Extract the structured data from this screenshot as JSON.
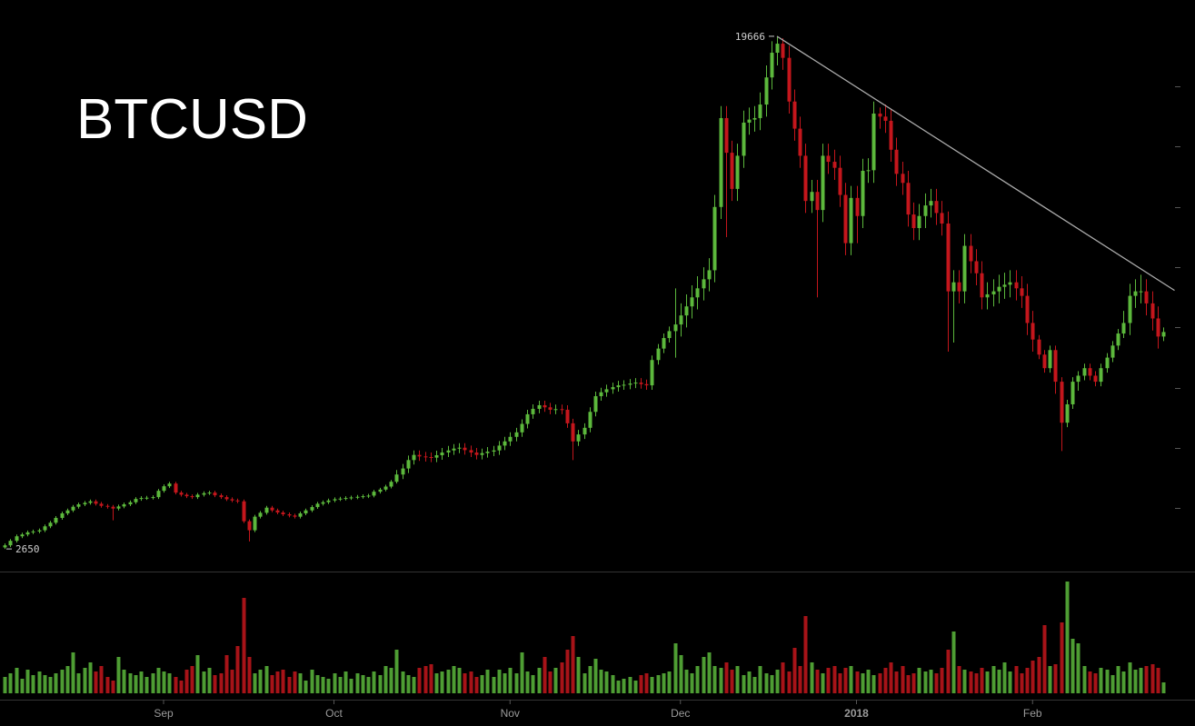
{
  "chart_data": {
    "type": "candlestick",
    "title": "BTCUSD",
    "xlim": [
      -0.8,
      209.6
    ],
    "ylim": [
      1900,
      20870
    ],
    "yticks": [
      4000,
      6000,
      8000,
      10000,
      12000,
      14000,
      16000,
      18000
    ],
    "xticks": [
      {
        "value": 28,
        "label": "Sep"
      },
      {
        "value": 58,
        "label": "Oct"
      },
      {
        "value": 89,
        "label": "Nov"
      },
      {
        "value": 119,
        "label": "Dec"
      },
      {
        "value": 150,
        "label": "2018"
      },
      {
        "value": 181,
        "label": "Feb"
      }
    ],
    "up_color": "#5cb83c",
    "down_color": "#c4161c",
    "open": [
      2700,
      2770,
      2920,
      3070,
      3130,
      3200,
      3230,
      3270,
      3400,
      3520,
      3680,
      3830,
      3930,
      4050,
      4130,
      4180,
      4230,
      4150,
      4080,
      4050,
      3990,
      4060,
      4130,
      4200,
      4310,
      4340,
      4350,
      4370,
      4580,
      4730,
      4820,
      4520,
      4450,
      4400,
      4370,
      4450,
      4500,
      4520,
      4430,
      4370,
      4300,
      4260,
      4230,
      3570,
      3270,
      3720,
      3850,
      4020,
      3930,
      3860,
      3800,
      3760,
      3720,
      3830,
      3930,
      4040,
      4150,
      4200,
      4260,
      4300,
      4320,
      4340,
      4360,
      4380,
      4400,
      4420,
      4550,
      4620,
      4720,
      4880,
      5120,
      5320,
      5600,
      5770,
      5720,
      5700,
      5680,
      5760,
      5850,
      5920,
      5980,
      6010,
      5930,
      5850,
      5770,
      5830,
      5880,
      5920,
      6080,
      6220,
      6370,
      6520,
      6800,
      7120,
      7300,
      7420,
      7350,
      7270,
      7290,
      7270,
      6820,
      6220,
      6450,
      6670,
      7200,
      7720,
      7850,
      7950,
      8020,
      8080,
      8100,
      8140,
      8170,
      8120,
      8080,
      8920,
      9300,
      9650,
      9880,
      10100,
      10400,
      10700,
      11000,
      11300,
      11600,
      11900,
      14000,
      16950,
      15800,
      14600,
      15700,
      16800,
      16900,
      16950,
      17400,
      18300,
      19120,
      19420,
      18950,
      17500,
      16600,
      15700,
      14200,
      14500,
      13900,
      15700,
      15500,
      15300,
      14400,
      12800,
      14300,
      13700,
      15200,
      15220,
      17100,
      17000,
      16860,
      15900,
      15100,
      14800,
      13750,
      13300,
      13700,
      14050,
      14200,
      13800,
      13450,
      11200,
      11500,
      11200,
      12710,
      12200,
      11800,
      11000,
      11100,
      11200,
      11350,
      11420,
      11500,
      11300,
      11050,
      10150,
      9600,
      9100,
      8650,
      9250,
      8200,
      6840,
      7450,
      8200,
      8400,
      8650,
      8400,
      8200,
      8650,
      9000,
      9400,
      9800,
      10150,
      11050,
      11200,
      11200,
      10800,
      10300,
      9700
    ],
    "high": [
      2830,
      2980,
      3130,
      3190,
      3260,
      3290,
      3330,
      3460,
      3580,
      3740,
      3890,
      3990,
      4110,
      4190,
      4240,
      4290,
      4290,
      4210,
      4140,
      4110,
      4120,
      4190,
      4260,
      4370,
      4400,
      4410,
      4430,
      4640,
      4790,
      4880,
      4880,
      4580,
      4510,
      4460,
      4510,
      4560,
      4580,
      4580,
      4490,
      4430,
      4360,
      4320,
      4290,
      3630,
      3780,
      3910,
      4080,
      4080,
      3990,
      3920,
      3860,
      3820,
      3890,
      3990,
      4100,
      4210,
      4260,
      4320,
      4360,
      4380,
      4400,
      4420,
      4440,
      4460,
      4480,
      4610,
      4680,
      4780,
      4940,
      5270,
      5470,
      5750,
      5920,
      5920,
      5870,
      5850,
      5910,
      6000,
      6070,
      6130,
      6160,
      6160,
      6080,
      6000,
      5980,
      6030,
      6070,
      6230,
      6370,
      6520,
      6670,
      6950,
      7270,
      7450,
      7570,
      7570,
      7500,
      7440,
      7440,
      7420,
      6970,
      6600,
      6820,
      7350,
      7870,
      8000,
      8100,
      8170,
      8230,
      8250,
      8290,
      8320,
      8320,
      8270,
      9070,
      9450,
      9800,
      10030,
      11300,
      10800,
      11100,
      11400,
      11700,
      12000,
      12300,
      14400,
      17350,
      17350,
      16200,
      16100,
      17200,
      17300,
      17350,
      17800,
      18700,
      19500,
      19666,
      19600,
      19350,
      17900,
      17000,
      16100,
      14900,
      14900,
      16100,
      16100,
      15900,
      15700,
      14800,
      14700,
      14700,
      15600,
      15620,
      17500,
      17300,
      17400,
      17260,
      16300,
      15500,
      15200,
      14150,
      14100,
      14450,
      14600,
      14600,
      14200,
      13850,
      11900,
      11900,
      13100,
      13100,
      12600,
      12200,
      11500,
      11600,
      11750,
      11820,
      11900,
      11900,
      11700,
      11450,
      10550,
      9750,
      9250,
      9400,
      9400,
      8350,
      7600,
      8350,
      8550,
      8800,
      8800,
      8550,
      8800,
      9150,
      9550,
      9950,
      10550,
      11450,
      11600,
      11750,
      11600,
      11200,
      10700,
      10000
    ],
    "low": [
      2650,
      2710,
      2860,
      3010,
      3070,
      3140,
      3170,
      3210,
      3340,
      3460,
      3620,
      3770,
      3870,
      3990,
      4070,
      4120,
      4090,
      4020,
      3990,
      3600,
      3930,
      4000,
      4070,
      4140,
      4250,
      4280,
      4290,
      4310,
      4520,
      4670,
      4460,
      4390,
      4340,
      4310,
      4310,
      4390,
      4440,
      4370,
      4310,
      4240,
      4200,
      4170,
      3510,
      2900,
      3210,
      3660,
      3790,
      3870,
      3800,
      3740,
      3700,
      3660,
      3660,
      3770,
      3870,
      3980,
      4090,
      4140,
      4200,
      4240,
      4260,
      4280,
      4300,
      4320,
      4340,
      4360,
      4490,
      4560,
      4660,
      4820,
      4970,
      5170,
      5450,
      5570,
      5550,
      5530,
      5530,
      5610,
      5700,
      5770,
      5830,
      5780,
      5700,
      5620,
      5620,
      5680,
      5730,
      5770,
      5930,
      6070,
      6220,
      6370,
      6650,
      6970,
      7150,
      7200,
      7120,
      7120,
      7120,
      6670,
      5600,
      6070,
      6300,
      6520,
      7050,
      7570,
      7700,
      7800,
      7870,
      7930,
      7950,
      7990,
      7970,
      7930,
      7930,
      8770,
      9150,
      9500,
      9000,
      9700,
      10000,
      10300,
      10600,
      10900,
      11200,
      11500,
      13600,
      13000,
      14200,
      14200,
      15300,
      16400,
      16500,
      16550,
      17000,
      17900,
      18700,
      18550,
      17100,
      16200,
      15300,
      13800,
      13800,
      11000,
      13500,
      15100,
      14900,
      14000,
      12400,
      12400,
      12800,
      13300,
      14800,
      14800,
      16600,
      16460,
      15500,
      14700,
      14400,
      13350,
      12900,
      12900,
      13300,
      13650,
      13400,
      13050,
      9200,
      9500,
      10800,
      10800,
      11800,
      11400,
      10600,
      10600,
      10700,
      10800,
      10950,
      11000,
      10900,
      10650,
      9750,
      9200,
      8950,
      8500,
      8500,
      7800,
      5900,
      6690,
      7300,
      7900,
      8250,
      8250,
      8050,
      8050,
      8500,
      8850,
      9250,
      9650,
      9750,
      10650,
      10800,
      10400,
      9900,
      9300,
      9550
    ],
    "close": [
      2770,
      2920,
      3070,
      3130,
      3200,
      3230,
      3270,
      3400,
      3520,
      3680,
      3830,
      3930,
      4050,
      4130,
      4180,
      4230,
      4150,
      4080,
      4050,
      3990,
      4060,
      4130,
      4200,
      4310,
      4340,
      4350,
      4370,
      4580,
      4730,
      4820,
      4520,
      4450,
      4400,
      4370,
      4450,
      4500,
      4520,
      4430,
      4370,
      4300,
      4260,
      4230,
      3570,
      3270,
      3720,
      3850,
      4020,
      3930,
      3860,
      3800,
      3760,
      3720,
      3830,
      3930,
      4040,
      4150,
      4200,
      4260,
      4300,
      4320,
      4340,
      4360,
      4380,
      4400,
      4420,
      4550,
      4620,
      4720,
      4880,
      5120,
      5320,
      5600,
      5770,
      5720,
      5700,
      5680,
      5760,
      5850,
      5920,
      5980,
      6010,
      5930,
      5850,
      5770,
      5830,
      5880,
      5920,
      6080,
      6220,
      6370,
      6520,
      6800,
      7120,
      7300,
      7420,
      7350,
      7270,
      7290,
      7270,
      6820,
      6220,
      6450,
      6670,
      7200,
      7720,
      7850,
      7950,
      8020,
      8080,
      8100,
      8140,
      8170,
      8120,
      8080,
      8920,
      9300,
      9650,
      9880,
      10100,
      10400,
      10700,
      11000,
      11300,
      11600,
      11900,
      14000,
      16950,
      15800,
      14600,
      15700,
      16800,
      16900,
      16950,
      17400,
      18300,
      19120,
      19420,
      18950,
      17500,
      16600,
      15700,
      14200,
      14500,
      13900,
      15700,
      15500,
      15300,
      14400,
      12800,
      14300,
      13700,
      15200,
      15220,
      17100,
      17000,
      16860,
      15900,
      15100,
      14800,
      13750,
      13300,
      13700,
      14050,
      14200,
      13800,
      13450,
      11200,
      11500,
      11200,
      12710,
      12200,
      11800,
      11000,
      11100,
      11200,
      11350,
      11420,
      11500,
      11300,
      11050,
      10150,
      9600,
      9100,
      8650,
      9250,
      8200,
      6840,
      7450,
      8200,
      8400,
      8650,
      8400,
      8200,
      8650,
      9000,
      9400,
      9800,
      10150,
      11050,
      11200,
      11200,
      10800,
      10300,
      9700,
      9850
    ],
    "volume_ylim": [
      0,
      134
    ],
    "volume": [
      18,
      22,
      28,
      16,
      26,
      20,
      24,
      20,
      18,
      22,
      26,
      30,
      45,
      22,
      28,
      34,
      24,
      30,
      18,
      14,
      40,
      26,
      22,
      20,
      24,
      18,
      22,
      28,
      24,
      22,
      18,
      14,
      26,
      30,
      42,
      24,
      28,
      20,
      22,
      42,
      26,
      52,
      105,
      40,
      22,
      26,
      30,
      20,
      24,
      26,
      18,
      24,
      22,
      14,
      26,
      20,
      18,
      16,
      22,
      18,
      24,
      16,
      22,
      20,
      18,
      24,
      20,
      30,
      28,
      48,
      24,
      20,
      18,
      28,
      30,
      32,
      22,
      24,
      26,
      30,
      28,
      22,
      24,
      18,
      20,
      26,
      18,
      26,
      22,
      28,
      22,
      45,
      24,
      20,
      28,
      40,
      24,
      28,
      34,
      48,
      63,
      40,
      22,
      30,
      38,
      26,
      24,
      20,
      14,
      16,
      18,
      14,
      20,
      22,
      18,
      20,
      22,
      24,
      55,
      42,
      26,
      22,
      30,
      40,
      45,
      30,
      28,
      34,
      26,
      30,
      20,
      24,
      18,
      30,
      22,
      20,
      26,
      34,
      24,
      50,
      30,
      85,
      34,
      26,
      22,
      28,
      30,
      22,
      28,
      30,
      24,
      22,
      26,
      20,
      22,
      28,
      34,
      24,
      30,
      20,
      22,
      28,
      24,
      26,
      22,
      28,
      48,
      68,
      30,
      26,
      24,
      22,
      28,
      24,
      30,
      26,
      34,
      24,
      30,
      22,
      28,
      36,
      40,
      75,
      30,
      32,
      78,
      123,
      60,
      55,
      30,
      24,
      22,
      28,
      26,
      20,
      30,
      24,
      34,
      26,
      28,
      30,
      32,
      28,
      12
    ],
    "trendline": {
      "x": [
        136,
        206
      ],
      "y": [
        19666,
        11230
      ]
    },
    "annotations": [
      {
        "x": 136,
        "y": 19666
      },
      {
        "x": 0,
        "y": 2650
      }
    ]
  }
}
